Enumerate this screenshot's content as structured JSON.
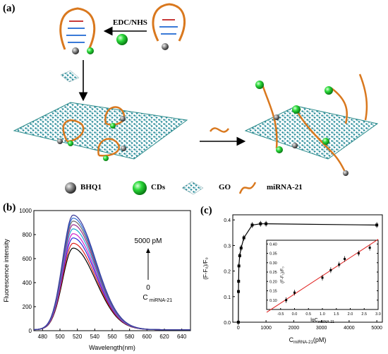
{
  "panels": {
    "a": {
      "label": "(a)"
    },
    "b": {
      "label": "(b)"
    },
    "c": {
      "label": "(c)"
    }
  },
  "schematic": {
    "reagent_label": "EDC/NHS",
    "legend": [
      {
        "label": "BHQ1",
        "icon": "bhq1-sphere-icon"
      },
      {
        "label": "CDs",
        "icon": "cd-sphere-icon"
      },
      {
        "label": "GO",
        "icon": "go-sheet-icon"
      },
      {
        "label": "miRNA-21",
        "icon": "mirna-strand-icon"
      }
    ],
    "colors": {
      "go_sheet": "#2a8a8a",
      "cd_green": "#2bd93a",
      "bhq_gray": "#777777",
      "strand_orange": "#d9781e"
    }
  },
  "chart_data": [
    {
      "type": "line",
      "panel": "b",
      "xlabel": "Wavelength(nm)",
      "ylabel": "Fluorescence intensity",
      "xlim": [
        470,
        650
      ],
      "ylim": [
        0,
        1000
      ],
      "x_ticks": [
        "480",
        "500",
        "520",
        "540",
        "560",
        "580",
        "600",
        "620",
        "640"
      ],
      "y_ticks": [
        "0",
        "200",
        "400",
        "600",
        "800",
        "1000"
      ],
      "annotation_top": "5000 pM",
      "annotation_bottom": "0",
      "annotation_var": "C",
      "annotation_sub": "miRNA-21",
      "peak_x": 515,
      "series": [
        {
          "peak": 680,
          "color": "#000000"
        },
        {
          "peak": 720,
          "color": "#e0201e"
        },
        {
          "peak": 765,
          "color": "#2a2ad8"
        },
        {
          "peak": 800,
          "color": "#d020c8"
        },
        {
          "peak": 840,
          "color": "#20a8d0"
        },
        {
          "peak": 875,
          "color": "#9a2a8a"
        },
        {
          "peak": 905,
          "color": "#6a6a6a"
        },
        {
          "peak": 930,
          "color": "#2a6ad8"
        },
        {
          "peak": 955,
          "color": "#3a3a9a"
        }
      ]
    },
    {
      "type": "line",
      "panel": "c",
      "xlabel_var": "C",
      "xlabel_sub": "miRNA-21",
      "xlabel_unit": "(pM)",
      "ylabel": "(F-F₀)/F₀",
      "xlim": [
        -200,
        5200
      ],
      "ylim": [
        0,
        0.42
      ],
      "x_ticks": [
        "0",
        "1000",
        "2000",
        "3000",
        "4000",
        "5000"
      ],
      "y_ticks": [
        "0.0",
        "0.1",
        "0.2",
        "0.3",
        "0.4"
      ],
      "x": [
        0,
        5,
        10,
        20,
        50,
        100,
        200,
        500,
        800,
        1000,
        5000
      ],
      "y": [
        0.0,
        0.12,
        0.16,
        0.22,
        0.26,
        0.29,
        0.33,
        0.38,
        0.385,
        0.385,
        0.38
      ]
    },
    {
      "type": "scatter",
      "panel": "c-inset",
      "xlabel_var": "lgC",
      "xlabel_sub": "miRNA-21",
      "ylabel": "(F-F₀)/F₀",
      "xlim": [
        -1.0,
        3.0
      ],
      "ylim": [
        0.05,
        0.42
      ],
      "x_ticks": [
        "-0.5",
        "0.0",
        "0.5",
        "1.0",
        "1.5",
        "2.0",
        "2.5",
        "3.0"
      ],
      "y_ticks": [
        "0.10",
        "0.15",
        "0.20",
        "0.25",
        "0.30",
        "0.35",
        "0.40"
      ],
      "x": [
        -0.3,
        0.0,
        1.0,
        1.3,
        1.6,
        1.8,
        2.3,
        2.7
      ],
      "y": [
        0.1,
        0.14,
        0.22,
        0.26,
        0.29,
        0.32,
        0.35,
        0.38
      ],
      "fit_line": {
        "x": [
          -1.0,
          3.0
        ],
        "y": [
          0.035,
          0.425
        ],
        "color": "#e0201e"
      }
    }
  ]
}
